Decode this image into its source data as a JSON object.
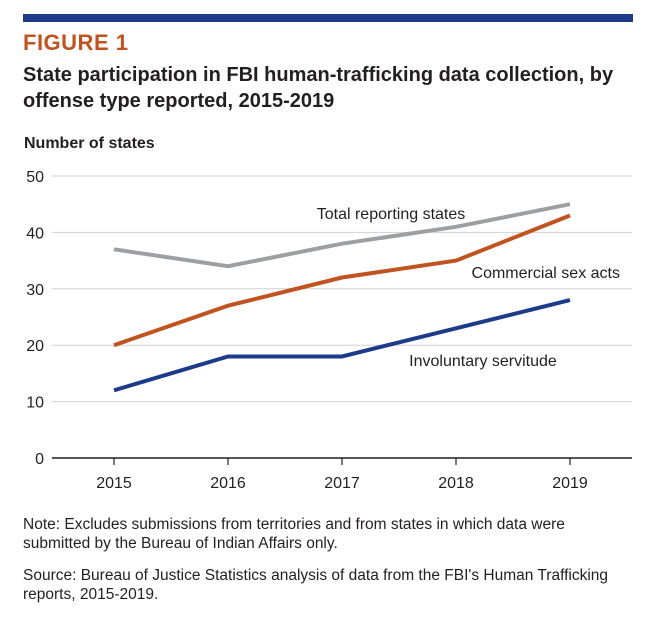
{
  "figure": {
    "label": "FIGURE 1",
    "title": "State participation in FBI human-trafficking data collection, by offense type reported, 2015-2019",
    "accent_color": "#1e3a8a",
    "label_color": "#c0531f"
  },
  "chart_data": {
    "type": "line",
    "title": "State participation in FBI human-trafficking data collection, by offense type reported, 2015-2019",
    "xlabel": "",
    "ylabel": "Number of states",
    "x": [
      "2015",
      "2016",
      "2017",
      "2018",
      "2019"
    ],
    "ylim": [
      0,
      50
    ],
    "yticks": [
      "0",
      "10",
      "20",
      "30",
      "40",
      "50"
    ],
    "grid": true,
    "legend": "inline labels",
    "series": [
      {
        "name": "Total reporting states",
        "values": [
          37,
          34,
          38,
          41,
          45
        ],
        "color": "#9d9fa2"
      },
      {
        "name": "Commercial sex acts",
        "values": [
          20,
          27,
          32,
          35,
          43
        ],
        "color": "#c0531f"
      },
      {
        "name": "Involuntary servitude",
        "values": [
          12,
          18,
          18,
          23,
          28
        ],
        "color": "#1e3a8a"
      }
    ]
  },
  "note": "Note: Excludes submissions from territories and from states in which data were submitted by the Bureau of Indian Affairs only.",
  "source": "Source: Bureau of Justice Statistics analysis of data from the FBI's Human Trafficking reports, 2015-2019."
}
